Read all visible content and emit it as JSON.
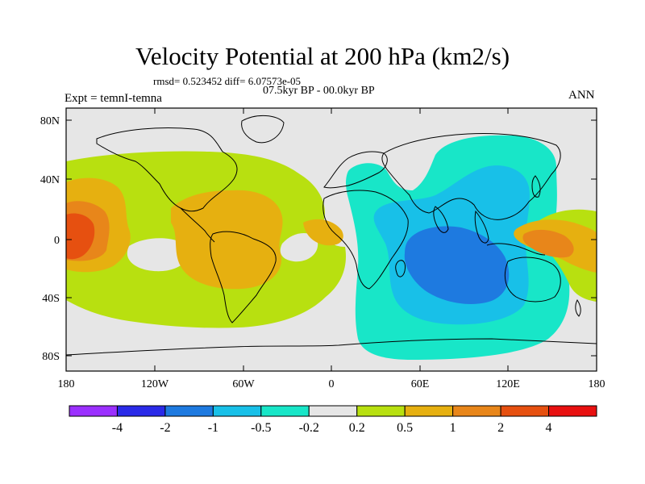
{
  "title": "Velocity Potential at 200 hPa (km2/s)",
  "stats": "rmsd= 0.523452 diff= 6.07573e-05",
  "period": "07.5kyr BP - 00.0kyr BP",
  "experiment": "Expt = temnI-temna",
  "season": "ANN",
  "map": {
    "projection": "cylindrical equidistant",
    "lon_range": [
      -180,
      180
    ],
    "lat_range": [
      -90,
      90
    ],
    "lat_ticks": [
      {
        "label": "80N"
      },
      {
        "label": "40N"
      },
      {
        "label": "0"
      },
      {
        "label": "40S"
      },
      {
        "label": "80S"
      }
    ],
    "lon_ticks": [
      {
        "label": "180"
      },
      {
        "label": "120W"
      },
      {
        "label": "60W"
      },
      {
        "label": "0"
      },
      {
        "label": "60E"
      },
      {
        "label": "120E"
      },
      {
        "label": "180"
      }
    ]
  },
  "colorbar": {
    "colors": [
      "#9b30ff",
      "#2a2ae8",
      "#1e7ae0",
      "#18c0e8",
      "#18e6c8",
      "#e6e6e6",
      "#b8e010",
      "#e6b010",
      "#e8861a",
      "#e65010",
      "#e81010"
    ],
    "labels": [
      "-4",
      "-2",
      "-1",
      "-0.5",
      "-0.2",
      "0.2",
      "0.5",
      "1",
      "2",
      "4"
    ]
  }
}
